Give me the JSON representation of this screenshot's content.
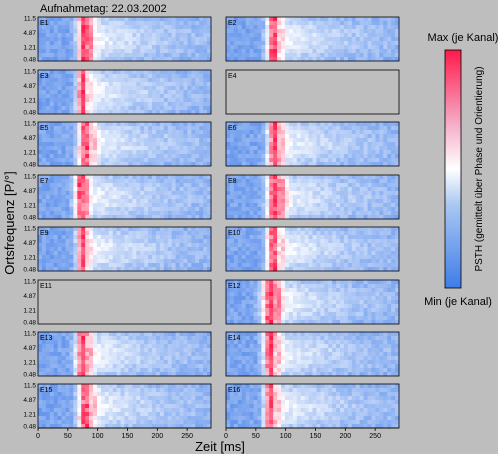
{
  "header": {
    "title": "Aufnahmetag: 22.03.2002"
  },
  "colorbar": {
    "max_label": "Max (je Kanal)",
    "min_label": "Min (je Kanal)",
    "label": "PSTH (gemittelt über Phase und Orientierung)",
    "colors": {
      "low": "#3f7ce8",
      "mid": "#ffffff",
      "high": "#ff1a4a"
    }
  },
  "axes": {
    "xlabel": "Zeit [ms]",
    "ylabel": "Ortsfrequenz [P/°]"
  },
  "chart_data": {
    "type": "heatmap",
    "x_ticks": [
      "0",
      "50",
      "100",
      "150",
      "200",
      "250"
    ],
    "x_range": [
      0,
      290
    ],
    "y_ticks": [
      "11.5",
      "4.87",
      "1.21",
      "0.48"
    ],
    "panels": [
      {
        "label": "E1",
        "has_data": true,
        "peak_ms": 78,
        "width_ms": 12
      },
      {
        "label": "E2",
        "has_data": true,
        "peak_ms": 80,
        "width_ms": 12
      },
      {
        "label": "E3",
        "has_data": true,
        "peak_ms": 75,
        "width_ms": 10
      },
      {
        "label": "E4",
        "has_data": false
      },
      {
        "label": "E5",
        "has_data": true,
        "peak_ms": 80,
        "width_ms": 13
      },
      {
        "label": "E6",
        "has_data": true,
        "peak_ms": 82,
        "width_ms": 12
      },
      {
        "label": "E7",
        "has_data": true,
        "peak_ms": 72,
        "width_ms": 11
      },
      {
        "label": "E8",
        "has_data": true,
        "peak_ms": 82,
        "width_ms": 14
      },
      {
        "label": "E9",
        "has_data": true,
        "peak_ms": 75,
        "width_ms": 10
      },
      {
        "label": "E10",
        "has_data": true,
        "peak_ms": 80,
        "width_ms": 12
      },
      {
        "label": "E11",
        "has_data": false
      },
      {
        "label": "E12",
        "has_data": true,
        "peak_ms": 75,
        "width_ms": 15
      },
      {
        "label": "E13",
        "has_data": true,
        "peak_ms": 75,
        "width_ms": 12
      },
      {
        "label": "E14",
        "has_data": true,
        "peak_ms": 75,
        "width_ms": 12
      },
      {
        "label": "E15",
        "has_data": true,
        "peak_ms": 80,
        "width_ms": 13
      },
      {
        "label": "E16",
        "has_data": true,
        "peak_ms": 75,
        "width_ms": 11
      }
    ]
  }
}
